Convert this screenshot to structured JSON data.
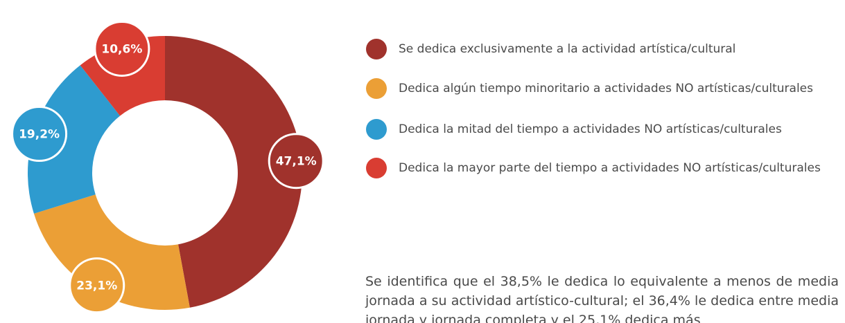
{
  "chart_data": {
    "type": "donut",
    "categories": [
      "Se dedica exclusivamente a la actividad artística/cultural",
      "Dedica algún tiempo minoritario a actividades NO artísticas/culturales",
      "Dedica la mitad del tiempo a actividades NO artísticas/culturales",
      "Dedica la mayor parte del tiempo a actividades NO artísticas/culturales"
    ],
    "values": [
      47.1,
      23.1,
      19.2,
      10.6
    ],
    "value_labels": [
      "47,1%",
      "23,1%",
      "19,2%",
      "10,6%"
    ],
    "colors": [
      "#a0322c",
      "#eb9f36",
      "#2e9bcf",
      "#d93d32"
    ],
    "annotation": "Se identifica que el 38,5% le dedica lo equivalente a menos de media jornada a su actividad artístico-cultural; el 36,4% le dedica entre media jornada y jornada completa y el 25,1% dedica más"
  }
}
